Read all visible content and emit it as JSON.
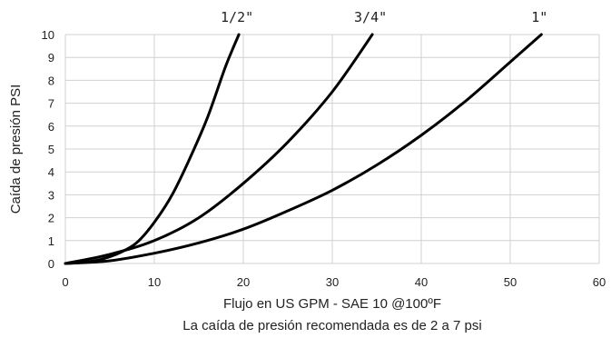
{
  "chart_data": {
    "type": "line",
    "ylabel": "Caída de presión PSI",
    "xlabel": "Flujo en US GPM - SAE 10 @100ºF",
    "subtitle": "La caída de presión recomendada es de 2 a 7 psi",
    "xlim": [
      0,
      60
    ],
    "ylim": [
      0,
      10
    ],
    "xticks": [
      "0",
      "10",
      "20",
      "30",
      "40",
      "50",
      "60"
    ],
    "yticks": [
      "0",
      "1",
      "2",
      "3",
      "4",
      "5",
      "6",
      "7",
      "8",
      "9",
      "10"
    ],
    "grid": true,
    "series": [
      {
        "name": "1/2\"",
        "x": [
          0,
          2,
          4,
          6,
          8,
          10,
          12,
          14,
          16,
          18,
          19.5
        ],
        "y": [
          0,
          0.05,
          0.18,
          0.45,
          0.9,
          1.8,
          3.0,
          4.6,
          6.4,
          8.6,
          10
        ]
      },
      {
        "name": "3/4\"",
        "x": [
          0,
          5,
          10,
          15,
          20,
          25,
          30,
          34.5
        ],
        "y": [
          0,
          0.4,
          1.0,
          2.0,
          3.5,
          5.3,
          7.5,
          10
        ]
      },
      {
        "name": "1\"",
        "x": [
          0,
          5,
          10,
          15,
          20,
          25,
          30,
          35,
          40,
          45,
          50,
          53.5
        ],
        "y": [
          0,
          0.12,
          0.45,
          0.9,
          1.5,
          2.3,
          3.2,
          4.3,
          5.6,
          7.1,
          8.8,
          10
        ]
      }
    ]
  }
}
